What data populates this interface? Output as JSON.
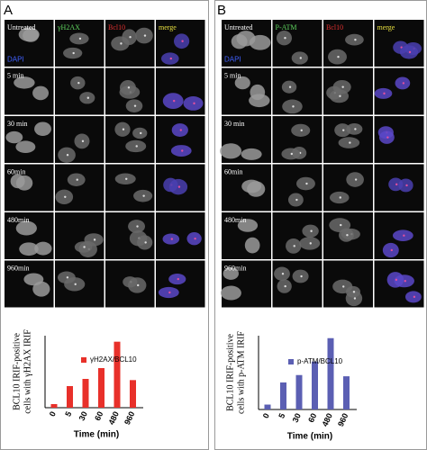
{
  "panels": [
    {
      "letter": "A",
      "headers": [
        "γH2AX",
        "Bcl10",
        "merge"
      ],
      "dapi": "DAPI",
      "rows": [
        "Untreated",
        "5 min",
        "30 min",
        "60min",
        "480min",
        "960min"
      ]
    },
    {
      "letter": "B",
      "headers": [
        "P-ATM",
        "Bcl10",
        "merge"
      ],
      "dapi": "DAPI",
      "rows": [
        "Untreated",
        "5 min",
        "30 min",
        "60min",
        "480min",
        "960min"
      ]
    }
  ],
  "chart_data": [
    {
      "type": "bar",
      "ylabel": [
        "BCL10 IRIF-positive",
        "cells with γH2AX IRIF"
      ],
      "xlabel": "Time (min)",
      "categories": [
        "0",
        "5",
        "30",
        "60",
        "480",
        "960"
      ],
      "ylim": [
        0,
        60
      ],
      "series": [
        {
          "name": "γH2AX/BCL10",
          "color": "#e8302a",
          "values": [
            3,
            18,
            24,
            33,
            55,
            23
          ]
        }
      ]
    },
    {
      "type": "bar",
      "ylabel": [
        "BCL10 IRIF-positive",
        "cells with p-ATM IRIF"
      ],
      "xlabel": "Time (min)",
      "categories": [
        "0",
        "5",
        "30",
        "60",
        "480",
        "960"
      ],
      "ylim": [
        0,
        60
      ],
      "series": [
        {
          "name": "p-ATM/BCL10",
          "color": "#5b5fb3",
          "values": [
            4,
            22,
            28,
            39,
            58,
            27
          ]
        }
      ]
    }
  ]
}
